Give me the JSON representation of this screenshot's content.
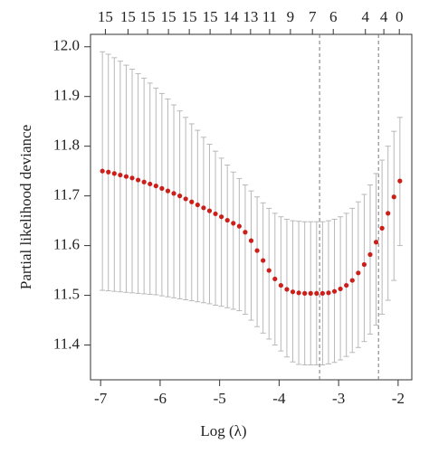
{
  "chart_data": {
    "type": "errorbar",
    "xlabel": "Log (λ)",
    "ylabel": "Partial likelihood deviance",
    "color": "#cc1f1a",
    "bar_color": "#b8b8b8",
    "vline_color": "#777777",
    "x": [
      -6.97,
      -6.87,
      -6.77,
      -6.67,
      -6.57,
      -6.47,
      -6.37,
      -6.27,
      -6.17,
      -6.07,
      -5.97,
      -5.87,
      -5.77,
      -5.67,
      -5.57,
      -5.47,
      -5.37,
      -5.27,
      -5.17,
      -5.07,
      -4.97,
      -4.87,
      -4.77,
      -4.67,
      -4.57,
      -4.47,
      -4.37,
      -4.27,
      -4.17,
      -4.07,
      -3.97,
      -3.87,
      -3.77,
      -3.67,
      -3.57,
      -3.47,
      -3.37,
      -3.27,
      -3.17,
      -3.07,
      -2.97,
      -2.87,
      -2.77,
      -2.67,
      -2.57,
      -2.47,
      -2.37,
      -2.27,
      -2.17,
      -2.07,
      -1.97
    ],
    "values": [
      11.75,
      11.748,
      11.745,
      11.742,
      11.739,
      11.736,
      11.732,
      11.728,
      11.724,
      11.72,
      11.715,
      11.71,
      11.705,
      11.7,
      11.694,
      11.688,
      11.682,
      11.676,
      11.67,
      11.664,
      11.658,
      11.651,
      11.645,
      11.639,
      11.627,
      11.61,
      11.59,
      11.57,
      11.55,
      11.533,
      11.52,
      11.512,
      11.507,
      11.505,
      11.504,
      11.504,
      11.504,
      11.504,
      11.505,
      11.508,
      11.513,
      11.52,
      11.53,
      11.545,
      11.562,
      11.582,
      11.607,
      11.635,
      11.665,
      11.698,
      11.73
    ],
    "upper": [
      11.99,
      11.985,
      11.978,
      11.971,
      11.963,
      11.955,
      11.946,
      11.937,
      11.927,
      11.917,
      11.906,
      11.895,
      11.883,
      11.871,
      11.858,
      11.845,
      11.832,
      11.818,
      11.804,
      11.79,
      11.776,
      11.762,
      11.748,
      11.735,
      11.722,
      11.71,
      11.698,
      11.686,
      11.675,
      11.665,
      11.658,
      11.653,
      11.65,
      11.649,
      11.648,
      11.648,
      11.648,
      11.648,
      11.65,
      11.653,
      11.658,
      11.665,
      11.675,
      11.688,
      11.703,
      11.722,
      11.745,
      11.772,
      11.8,
      11.83,
      11.858
    ],
    "lower": [
      11.51,
      11.509,
      11.508,
      11.507,
      11.506,
      11.505,
      11.504,
      11.503,
      11.502,
      11.501,
      11.499,
      11.497,
      11.495,
      11.493,
      11.491,
      11.489,
      11.487,
      11.485,
      11.483,
      11.48,
      11.478,
      11.475,
      11.472,
      11.469,
      11.462,
      11.45,
      11.437,
      11.424,
      11.412,
      11.4,
      11.388,
      11.376,
      11.366,
      11.361,
      11.36,
      11.36,
      11.36,
      11.36,
      11.362,
      11.365,
      11.37,
      11.377,
      11.385,
      11.395,
      11.407,
      11.422,
      11.44,
      11.462,
      11.49,
      11.53,
      11.6
    ],
    "vlines": [
      -3.32,
      -2.33
    ],
    "xlim": [
      -7.17,
      -1.77
    ],
    "ylim": [
      11.33,
      12.025
    ],
    "xticks": [
      -7,
      -6,
      -5,
      -4,
      -3,
      -2
    ],
    "yticks": [
      {
        "value": 11.4,
        "label": "11.4"
      },
      {
        "value": 11.5,
        "label": "11.5"
      },
      {
        "value": 11.6,
        "label": "11.6"
      },
      {
        "value": 11.7,
        "label": "11.7"
      },
      {
        "value": 11.8,
        "label": "11.8"
      },
      {
        "value": 11.9,
        "label": "11.9"
      },
      {
        "value": 12.0,
        "label": "12.0"
      }
    ],
    "top_ticks": [
      {
        "value": -6.92,
        "label": "15"
      },
      {
        "value": -6.54,
        "label": "15"
      },
      {
        "value": -6.21,
        "label": "15"
      },
      {
        "value": -5.86,
        "label": "15"
      },
      {
        "value": -5.51,
        "label": "15"
      },
      {
        "value": -5.16,
        "label": "15"
      },
      {
        "value": -4.81,
        "label": "14"
      },
      {
        "value": -4.48,
        "label": "13"
      },
      {
        "value": -4.16,
        "label": "11"
      },
      {
        "value": -3.81,
        "label": "9"
      },
      {
        "value": -3.44,
        "label": "7"
      },
      {
        "value": -3.09,
        "label": "6"
      },
      {
        "value": -2.55,
        "label": "4"
      },
      {
        "value": -2.24,
        "label": "4"
      },
      {
        "value": -1.98,
        "label": "0"
      }
    ]
  }
}
